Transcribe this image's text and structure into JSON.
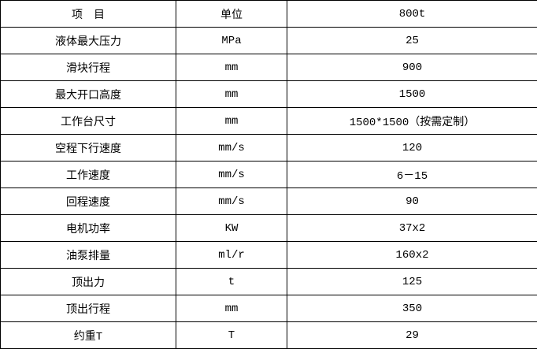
{
  "table": {
    "columns": [
      {
        "label": "项　目"
      },
      {
        "label": "单位"
      },
      {
        "label": "800t"
      }
    ],
    "rows": [
      {
        "item": "液体最大压力",
        "unit": "MPa",
        "value": "25"
      },
      {
        "item": "滑块行程",
        "unit": "mm",
        "value": "900"
      },
      {
        "item": "最大开口高度",
        "unit": "mm",
        "value": "1500"
      },
      {
        "item": "工作台尺寸",
        "unit": "mm",
        "value": "1500*1500（按需定制）"
      },
      {
        "item": "空程下行速度",
        "unit": "mm/s",
        "value": "120"
      },
      {
        "item": "工作速度",
        "unit": "mm/s",
        "value": "6－15"
      },
      {
        "item": "回程速度",
        "unit": "mm/s",
        "value": "90"
      },
      {
        "item": "电机功率",
        "unit": "KW",
        "value": "37x2"
      },
      {
        "item": "油泵排量",
        "unit": "ml/r",
        "value": "160x2"
      },
      {
        "item": "顶出力",
        "unit": "t",
        "value": "125"
      },
      {
        "item": "顶出行程",
        "unit": "mm",
        "value": "350"
      },
      {
        "item": "约重T",
        "unit": "T",
        "value": "29"
      }
    ],
    "border_color": "#000000",
    "text_color": "#000000",
    "background_color": "#ffffff"
  }
}
